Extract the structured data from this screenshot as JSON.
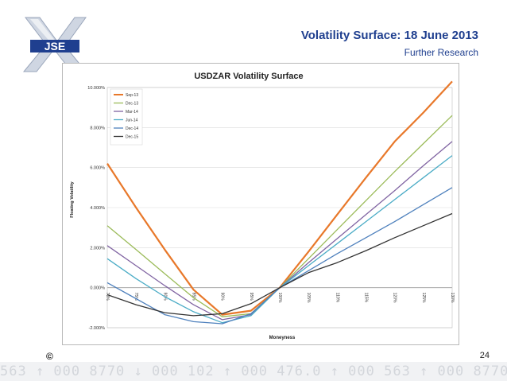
{
  "header": {
    "title": "Volatility Surface: 18 June 2013",
    "subtitle": "Further Research",
    "logo_text": "JSE"
  },
  "footer": {
    "copyright": "©",
    "page_number": "24",
    "ticker": "563 ↑ 000 8770 ↓ 000 102 ↑ 000 476.0 ↑ 000 563 ↑ 000 8770 ↓"
  },
  "chart_data": {
    "type": "line",
    "title": "USDZAR Volatility Surface",
    "xlabel": "Moneyness",
    "ylabel": "Floating Volatility",
    "categories": [
      "70%",
      "75%",
      "80%",
      "85%",
      "90%",
      "95%",
      "100%",
      "105%",
      "110%",
      "115%",
      "120%",
      "125%",
      "130%"
    ],
    "yticks": [
      "-2.000%",
      "0.000%",
      "2.000%",
      "4.000%",
      "6.000%",
      "8.000%",
      "10.000%"
    ],
    "ylim": [
      -2,
      10
    ],
    "grid": true,
    "legend_position": "top-left",
    "series": [
      {
        "name": "Sep-13",
        "color": "#e8782a",
        "values": [
          6.2,
          4.0,
          1.9,
          -0.1,
          -1.35,
          -1.15,
          0.0,
          1.8,
          3.65,
          5.5,
          7.3,
          8.75,
          10.3
        ]
      },
      {
        "name": "Dec-13",
        "color": "#9bbb59",
        "values": [
          3.1,
          1.9,
          0.7,
          -0.5,
          -1.45,
          -1.3,
          0.0,
          1.45,
          2.9,
          4.35,
          5.8,
          7.2,
          8.6
        ]
      },
      {
        "name": "Mar-14",
        "color": "#8064a2",
        "values": [
          2.1,
          1.1,
          0.1,
          -0.85,
          -1.6,
          -1.35,
          0.0,
          1.25,
          2.45,
          3.65,
          4.85,
          6.1,
          7.3
        ]
      },
      {
        "name": "Jun-14",
        "color": "#4bacc6",
        "values": [
          1.45,
          0.45,
          -0.45,
          -1.2,
          -1.75,
          -1.4,
          0.0,
          1.1,
          2.2,
          3.3,
          4.4,
          5.5,
          6.6
        ]
      },
      {
        "name": "Dec-14",
        "color": "#4f81bd",
        "values": [
          0.25,
          -0.55,
          -1.35,
          -1.7,
          -1.8,
          -1.3,
          0.0,
          0.85,
          1.7,
          2.5,
          3.3,
          4.15,
          5.0
        ]
      },
      {
        "name": "Dec-15",
        "color": "#333333",
        "values": [
          -0.35,
          -0.85,
          -1.25,
          -1.4,
          -1.3,
          -0.8,
          0.0,
          0.75,
          1.25,
          1.85,
          2.5,
          3.1,
          3.7
        ]
      }
    ]
  }
}
